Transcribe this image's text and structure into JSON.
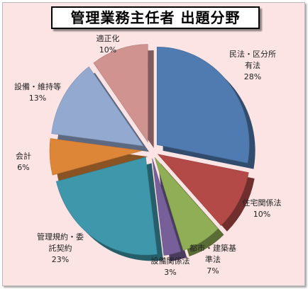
{
  "chart_data": {
    "type": "pie",
    "title": "管理業務主任者 出題分野",
    "slices": [
      {
        "label": [
          "民法・区分所",
          "有法"
        ],
        "pct": "28%",
        "value": 28,
        "color": "#4f7bb0"
      },
      {
        "label": [
          "住宅関係法"
        ],
        "pct": "10%",
        "value": 10,
        "color": "#b44a48"
      },
      {
        "label": [
          "都市・建築基",
          "準法"
        ],
        "pct": "7%",
        "value": 7,
        "color": "#8fae55"
      },
      {
        "label": [
          "設備関係法"
        ],
        "pct": "3%",
        "value": 3,
        "color": "#77609a"
      },
      {
        "label": [
          "管理規約・委",
          "託契約"
        ],
        "pct": "23%",
        "value": 23,
        "color": "#3e97ab"
      },
      {
        "label": [
          "会計"
        ],
        "pct": "6%",
        "value": 6,
        "color": "#de8638"
      },
      {
        "label": [
          "設備・維持等"
        ],
        "pct": "13%",
        "value": 13,
        "color": "#94a9d0"
      },
      {
        "label": [
          "適正化"
        ],
        "pct": "10%",
        "value": 10,
        "color": "#d09390"
      }
    ]
  }
}
